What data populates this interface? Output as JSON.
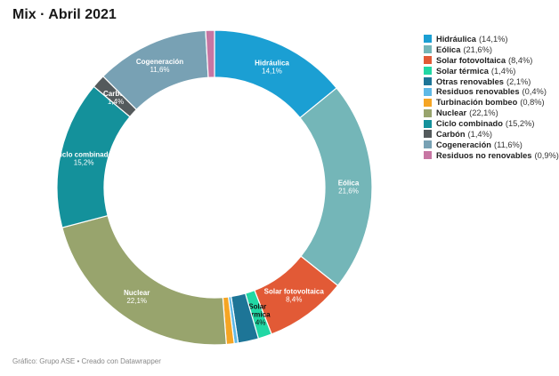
{
  "title": "Mix · Abril 2021",
  "footer": "Gráfico: Grupo ASE • Creado con Datawrapper",
  "chart_data": {
    "type": "pie",
    "variant": "donut",
    "title": "Mix · Abril 2021",
    "legend_position": "right",
    "unit": "%",
    "series": [
      {
        "name": "Hidráulica",
        "value": 14.1,
        "label": "14,1%",
        "color": "#1b9fd3",
        "label_on_chart": true,
        "label_color": "#ffffff"
      },
      {
        "name": "Eólica",
        "value": 21.6,
        "label": "21,6%",
        "color": "#74b6b8",
        "label_on_chart": true,
        "label_color": "#ffffff"
      },
      {
        "name": "Solar fotovoltaica",
        "value": 8.4,
        "label": "8,4%",
        "color": "#e25a36",
        "label_on_chart": true,
        "label_color": "#ffffff"
      },
      {
        "name": "Solar térmica",
        "value": 1.4,
        "label": "1,4%",
        "color": "#21d7a4",
        "label_on_chart": true,
        "label_color": "#111111"
      },
      {
        "name": "Otras renovables",
        "value": 2.1,
        "label": "2,1%",
        "color": "#1d7597",
        "label_on_chart": false
      },
      {
        "name": "Residuos renovables",
        "value": 0.4,
        "label": "0,4%",
        "color": "#5fb9e6",
        "label_on_chart": false
      },
      {
        "name": "Turbinación bombeo",
        "value": 0.8,
        "label": "0,8%",
        "color": "#f5a524",
        "label_on_chart": false
      },
      {
        "name": "Nuclear",
        "value": 22.1,
        "label": "22,1%",
        "color": "#98a46d",
        "label_on_chart": true,
        "label_color": "#ffffff"
      },
      {
        "name": "Ciclo combinado",
        "value": 15.2,
        "label": "15,2%",
        "color": "#14919b",
        "label_on_chart": true,
        "label_color": "#ffffff"
      },
      {
        "name": "Carbón",
        "value": 1.4,
        "label": "1,4%",
        "color": "#545a5c",
        "label_on_chart": true,
        "label_color": "#ffffff"
      },
      {
        "name": "Cogeneración",
        "value": 11.6,
        "label": "11,6%",
        "color": "#78a1b4",
        "label_on_chart": true,
        "label_color": "#ffffff"
      },
      {
        "name": "Residuos no renovables",
        "value": 0.9,
        "label": "0,9%",
        "color": "#c776a3",
        "label_on_chart": false
      }
    ]
  }
}
